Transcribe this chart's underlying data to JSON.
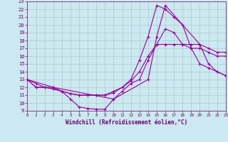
{
  "xlabel": "Windchill (Refroidissement éolien,°C)",
  "background_color": "#cce8f0",
  "grid_color": "#aacccc",
  "line_color": "#990099",
  "xlim": [
    0,
    23
  ],
  "ylim": [
    9,
    23
  ],
  "xticks": [
    0,
    1,
    2,
    3,
    4,
    5,
    6,
    7,
    8,
    9,
    10,
    11,
    12,
    13,
    14,
    15,
    16,
    17,
    18,
    19,
    20,
    21,
    22,
    23
  ],
  "yticks": [
    9,
    10,
    11,
    12,
    13,
    14,
    15,
    16,
    17,
    18,
    19,
    20,
    21,
    22,
    23
  ],
  "lines": [
    {
      "x": [
        0,
        1,
        2,
        3,
        4,
        5,
        6,
        7,
        8,
        9,
        10,
        11,
        12,
        13,
        14,
        15,
        16,
        17,
        18,
        19,
        20,
        21,
        22,
        23
      ],
      "y": [
        13,
        12,
        12,
        12,
        11.5,
        10.5,
        9.5,
        9.3,
        9.2,
        9.2,
        10.5,
        11.5,
        12.5,
        13,
        15.5,
        17.5,
        19.5,
        19,
        17.5,
        17,
        17,
        16.5,
        16,
        16
      ]
    },
    {
      "x": [
        0,
        1,
        2,
        3,
        4,
        5,
        6,
        7,
        8,
        9,
        10,
        11,
        12,
        13,
        14,
        15,
        16,
        17,
        18,
        19,
        20,
        21,
        22,
        23
      ],
      "y": [
        13,
        12.5,
        12,
        11.8,
        11.5,
        11.2,
        11,
        11,
        11,
        11,
        11.3,
        12,
        12.8,
        14,
        16,
        17.5,
        17.5,
        17.5,
        17.5,
        17.5,
        17.5,
        17,
        16.5,
        16.5
      ]
    },
    {
      "x": [
        0,
        1,
        2,
        3,
        4,
        5,
        6,
        7,
        8,
        9,
        10,
        11,
        12,
        13,
        14,
        15,
        16,
        17,
        18,
        19,
        20,
        21,
        22,
        23
      ],
      "y": [
        13,
        12,
        12,
        11.8,
        11.5,
        11.2,
        11,
        11,
        11,
        11,
        11.5,
        12,
        13,
        15.5,
        18.5,
        22.5,
        22,
        21,
        20,
        17,
        15,
        14.5,
        14,
        13.5
      ]
    },
    {
      "x": [
        0,
        3,
        10,
        14,
        15,
        16,
        20,
        21,
        22,
        23
      ],
      "y": [
        13,
        12,
        10.5,
        13,
        18.5,
        22.5,
        17.5,
        15,
        14,
        13.5
      ]
    }
  ]
}
